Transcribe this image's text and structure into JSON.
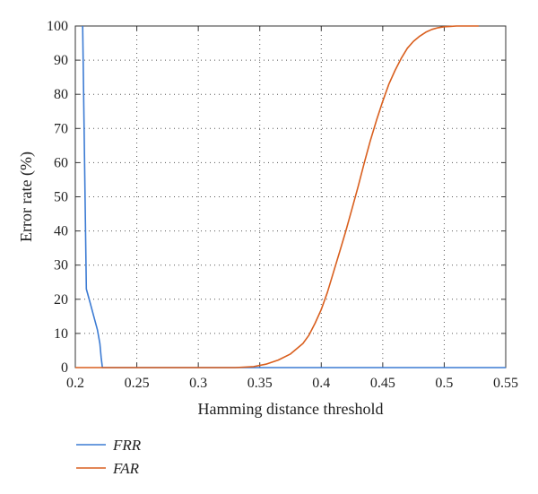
{
  "chart_data": {
    "type": "line",
    "title": "",
    "xlabel": "Hamming distance threshold",
    "ylabel": "Error rate (%)",
    "xlim": [
      0.2,
      0.55
    ],
    "ylim": [
      0,
      100
    ],
    "xticks": [
      0.2,
      0.25,
      0.3,
      0.35,
      0.4,
      0.45,
      0.5,
      0.55
    ],
    "xtick_labels": [
      "0.2",
      "0.25",
      "0.3",
      "0.35",
      "0.4",
      "0.45",
      "0.5",
      "0.55"
    ],
    "yticks": [
      0,
      10,
      20,
      30,
      40,
      50,
      60,
      70,
      80,
      90,
      100
    ],
    "ytick_labels": [
      "0",
      "10",
      "20",
      "30",
      "40",
      "50",
      "60",
      "70",
      "80",
      "90",
      "100"
    ],
    "grid": true,
    "legend_position": "below",
    "series": [
      {
        "name": "FRR",
        "color": "#3c7bd3",
        "x": [
          0.206,
          0.209,
          0.212,
          0.215,
          0.218,
          0.22,
          0.221,
          0.222,
          0.55
        ],
        "y": [
          100,
          23,
          19,
          15,
          11,
          7,
          3,
          0,
          0
        ]
      },
      {
        "name": "FAR",
        "color": "#d95f1e",
        "x": [
          0.2,
          0.33,
          0.345,
          0.355,
          0.365,
          0.375,
          0.385,
          0.39,
          0.395,
          0.4,
          0.405,
          0.41,
          0.415,
          0.42,
          0.425,
          0.43,
          0.435,
          0.44,
          0.445,
          0.45,
          0.455,
          0.46,
          0.465,
          0.47,
          0.475,
          0.48,
          0.485,
          0.49,
          0.495,
          0.5,
          0.505,
          0.51,
          0.515,
          0.52,
          0.528
        ],
        "y": [
          0,
          0,
          0.3,
          1,
          2.2,
          4,
          7,
          9.5,
          13,
          17,
          22,
          28,
          34,
          40,
          46.5,
          53,
          60,
          66.5,
          72.5,
          78,
          83,
          87,
          90.5,
          93.5,
          95.5,
          97,
          98.2,
          99,
          99.5,
          99.8,
          99.9,
          100,
          100,
          100,
          100
        ]
      }
    ]
  }
}
